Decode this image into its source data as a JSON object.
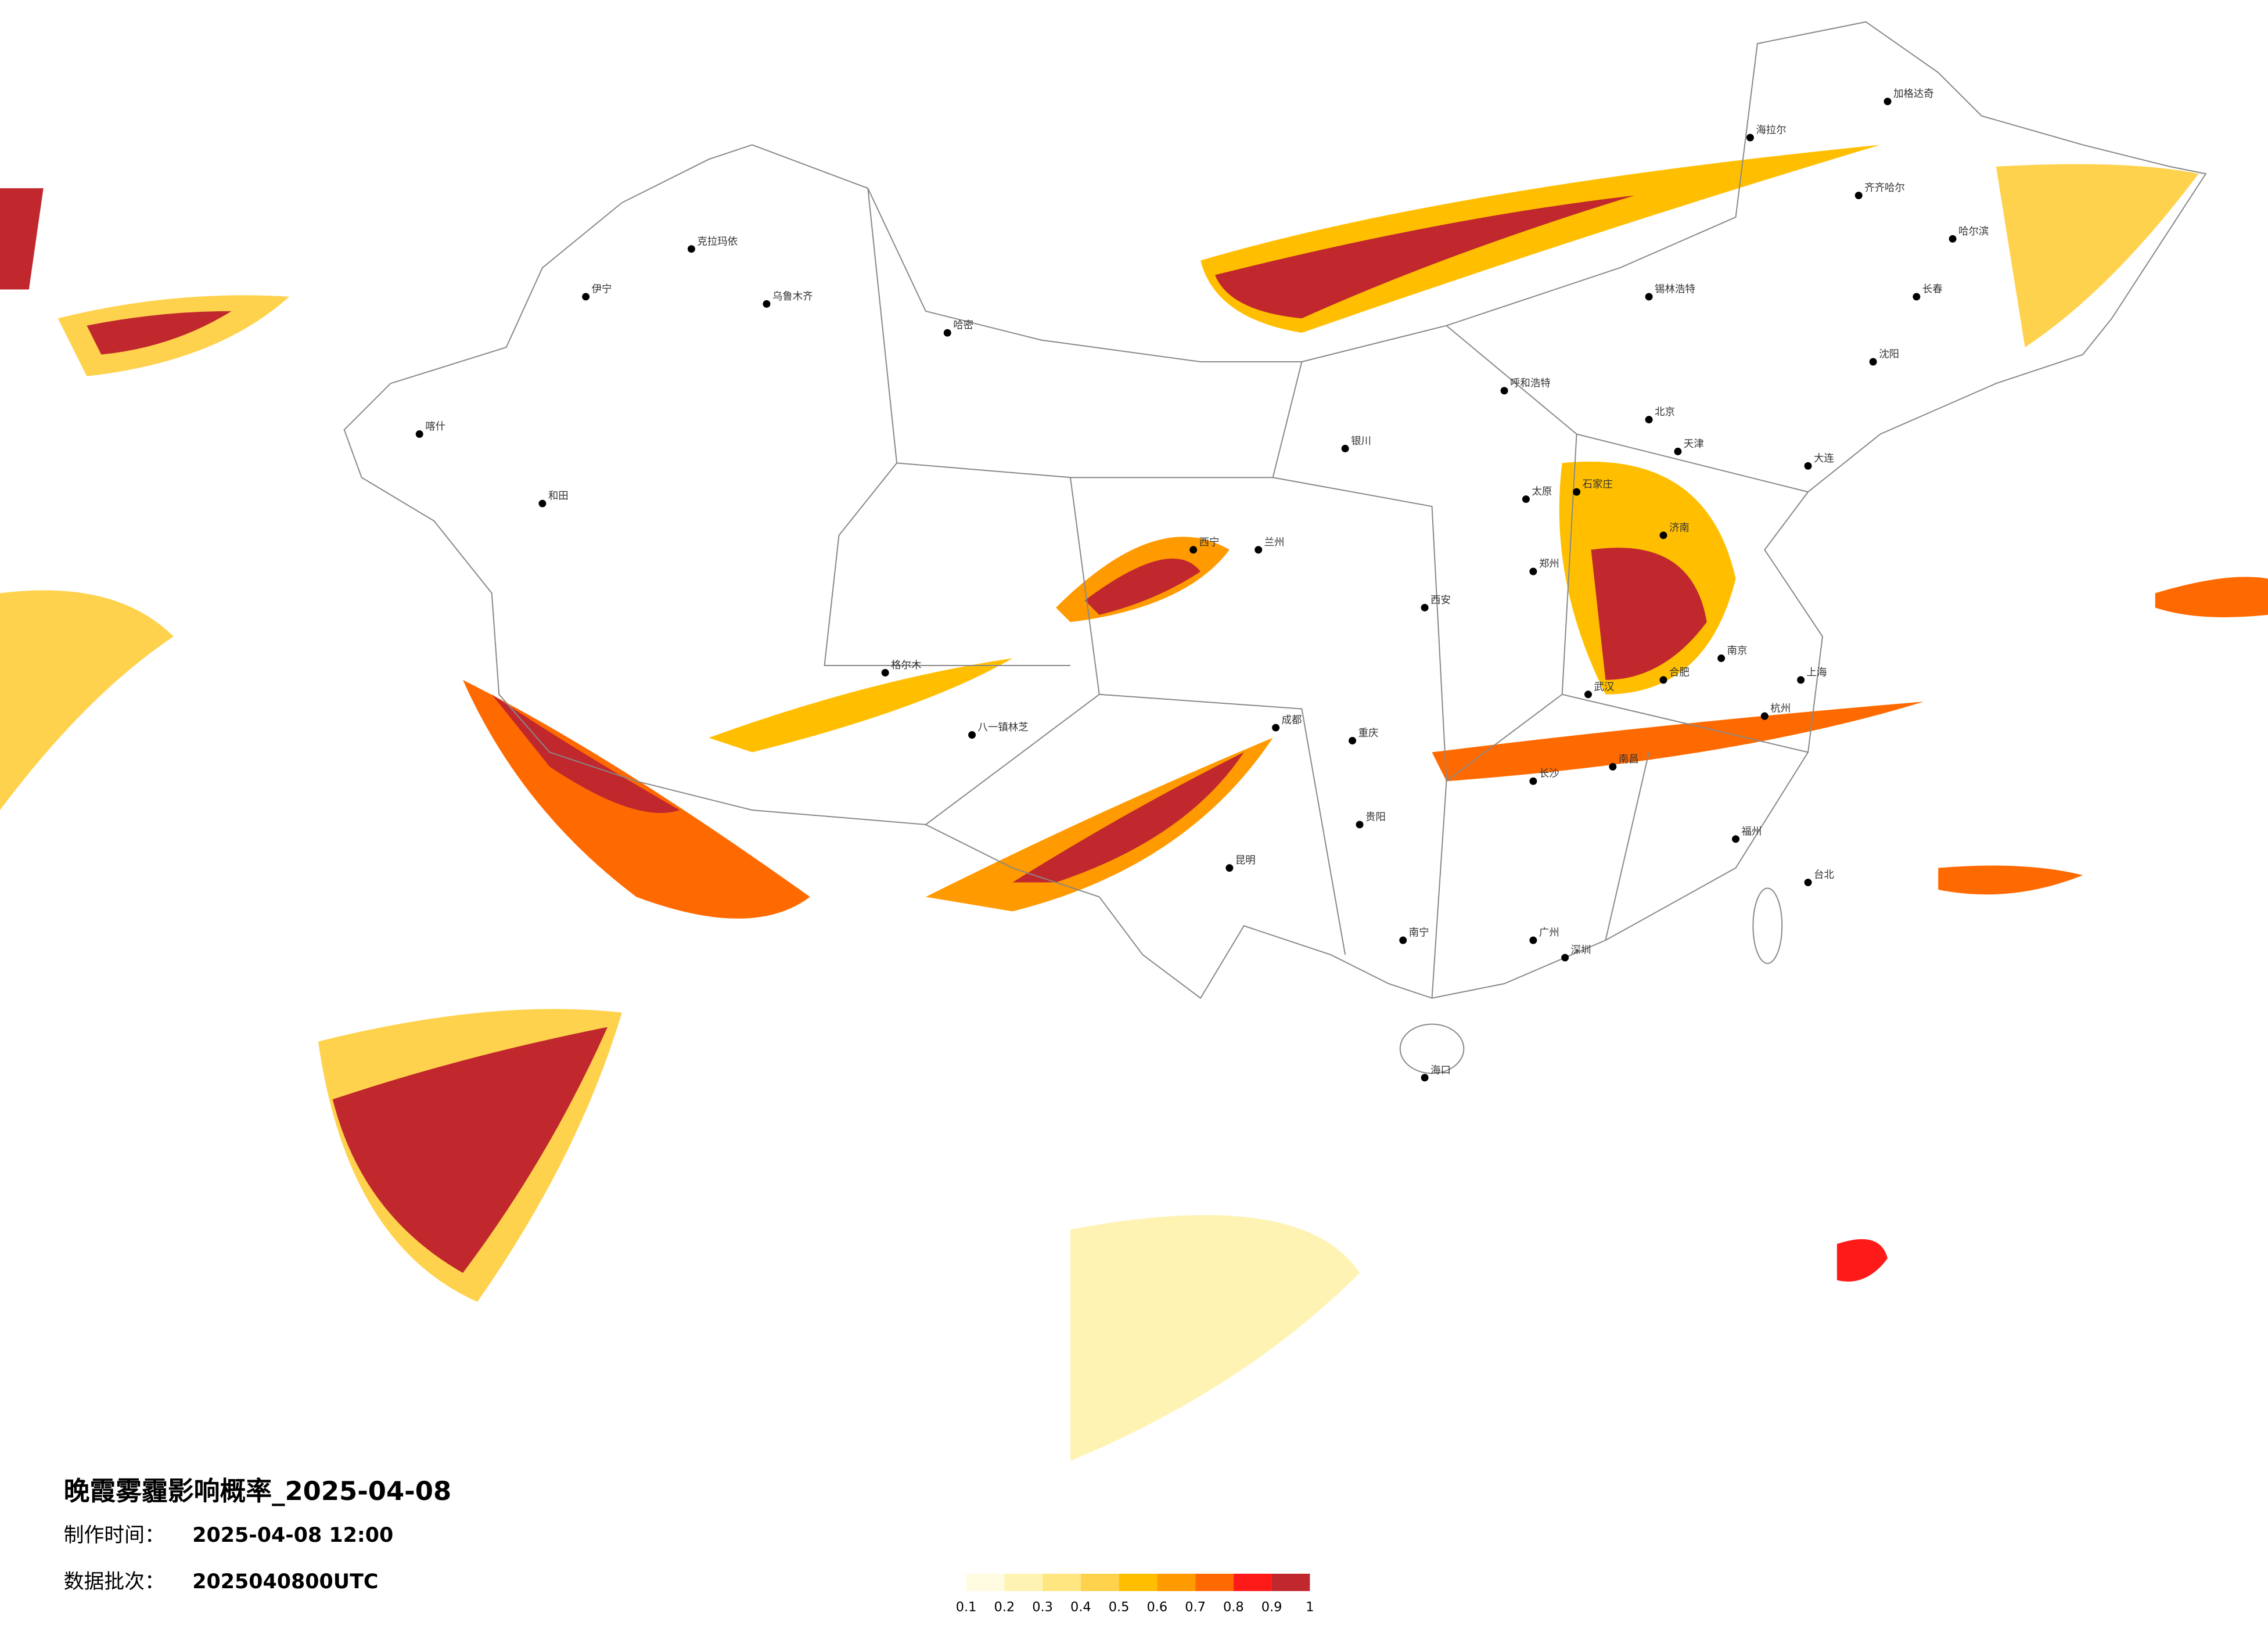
{
  "title": "晚霞雾霾影响概率_2025-04-08",
  "made_label": "制作时间：",
  "made_time": "2025-04-08 12:00",
  "batch_label": "数据批次：",
  "batch": "2025040800UTC",
  "legend": {
    "ticks": [
      0.1,
      0.2,
      0.3,
      0.4,
      0.5,
      0.6,
      0.7,
      0.8,
      0.9,
      1
    ],
    "colors": [
      "#fffbe0",
      "#fff3b3",
      "#ffe680",
      "#ffd24d",
      "#ffbf00",
      "#ff9a00",
      "#ff6a00",
      "#ff1a1a",
      "#c0282d"
    ]
  },
  "cities": [
    "北京",
    "天津",
    "上海",
    "郑州",
    "西安",
    "成都",
    "重庆",
    "武汉",
    "广州",
    "深圳",
    "南宁",
    "昆明",
    "贵阳",
    "长沙",
    "南昌",
    "福州",
    "杭州",
    "南京",
    "合肥",
    "济南",
    "太原",
    "石家庄",
    "呼和浩特",
    "银川",
    "兰州",
    "西宁",
    "八一镇林芝",
    "乌鲁木齐",
    "哈尔滨",
    "长春",
    "沈阳",
    "大连",
    "海口",
    "台北",
    "和田",
    "喀什",
    "伊宁",
    "克拉玛依",
    "海拉尔",
    "齐齐哈尔",
    "锡林浩特",
    "加格达奇",
    "哈密",
    "格尔木"
  ]
}
